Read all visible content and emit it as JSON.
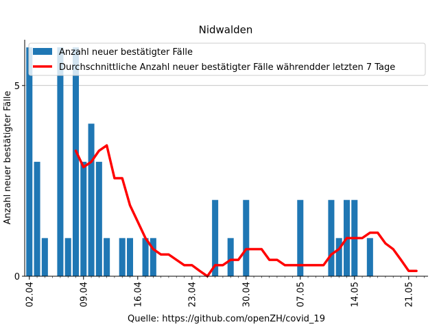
{
  "chart_data": {
    "type": "bar",
    "title": "Nidwalden",
    "xlabel": "Quelle: https://github.com/openZH/covid_19",
    "ylabel": "Anzahl neuer bestätigter Fälle",
    "ylim": [
      0,
      6.2
    ],
    "yticks": [
      0,
      5
    ],
    "grid": "y-major",
    "legend_position": "top-right",
    "x_tick_labels": [
      "02.04",
      "09.04",
      "16.04",
      "23.04",
      "30.04",
      "07.05",
      "14.05",
      "21.05"
    ],
    "x_tick_days": [
      0,
      7,
      14,
      21,
      28,
      35,
      42,
      49
    ],
    "day_range": [
      -0.6,
      51.5
    ],
    "series": [
      {
        "name": "Anzahl neuer bestätigter Fälle",
        "type": "bar",
        "color": "#1f77b4",
        "days": [
          0,
          1,
          2,
          3,
          4,
          5,
          6,
          7,
          8,
          9,
          10,
          11,
          12,
          13,
          14,
          15,
          16,
          17,
          18,
          19,
          20,
          21,
          22,
          23,
          24,
          25,
          26,
          27,
          28,
          29,
          30,
          31,
          32,
          33,
          34,
          35,
          36,
          37,
          38,
          39,
          40,
          41,
          42,
          43,
          44,
          45,
          46,
          47,
          48,
          49,
          50
        ],
        "values": [
          6,
          3,
          1,
          0,
          6,
          1,
          6,
          3,
          4,
          3,
          1,
          0,
          1,
          1,
          0,
          1,
          1,
          0,
          0,
          0,
          0,
          0,
          0,
          0,
          2,
          0,
          1,
          0,
          2,
          0,
          0,
          0,
          0,
          0,
          0,
          2,
          0,
          0,
          0,
          2,
          1,
          2,
          2,
          0,
          1,
          0,
          0,
          0,
          0,
          0,
          0
        ]
      },
      {
        "name": "Durchschnittliche Anzahl neuer bestätigter Fälle währendder letzten 7 Tage",
        "type": "line",
        "color": "#ff0000",
        "days": [
          6,
          7,
          8,
          9,
          10,
          11,
          12,
          13,
          14,
          15,
          16,
          17,
          18,
          19,
          20,
          21,
          22,
          23,
          24,
          25,
          26,
          27,
          28,
          29,
          30,
          31,
          32,
          33,
          34,
          35,
          36,
          37,
          38,
          39,
          40,
          41,
          42,
          43,
          44,
          45,
          46,
          47,
          48,
          49,
          50
        ],
        "values": [
          3.29,
          2.86,
          3.0,
          3.29,
          3.43,
          2.57,
          2.57,
          1.86,
          1.43,
          1.0,
          0.71,
          0.57,
          0.57,
          0.43,
          0.29,
          0.29,
          0.14,
          0.0,
          0.29,
          0.29,
          0.43,
          0.43,
          0.71,
          0.71,
          0.71,
          0.43,
          0.43,
          0.29,
          0.29,
          0.29,
          0.29,
          0.29,
          0.29,
          0.57,
          0.71,
          1.0,
          1.0,
          1.0,
          1.14,
          1.14,
          0.86,
          0.71,
          0.43,
          0.14,
          0.14
        ]
      }
    ]
  }
}
